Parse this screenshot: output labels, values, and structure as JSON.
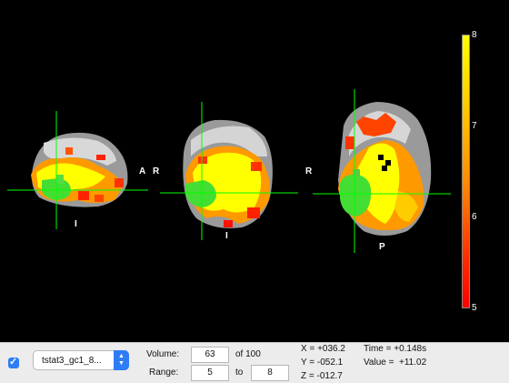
{
  "orientation": {
    "sagittal_anterior": "A",
    "sagittal_inferior": "I",
    "coronal_right": "R",
    "coronal_inferior": "I",
    "axial_right": "R",
    "axial_posterior": "P"
  },
  "colorbar": {
    "max_label": "8",
    "tick_7": "7",
    "tick_6": "6",
    "min_label": "5",
    "top_color": "#ffff00",
    "bottom_color": "#ff0000"
  },
  "crosshair_color": "#00ff00",
  "controls": {
    "overlay_checked": true,
    "file_name": "tstat3_gc1_8...",
    "volume_label": "Volume:",
    "volume_value": "63",
    "volume_of": "of 100",
    "range_label": "Range:",
    "range_min": "5",
    "range_to": "to",
    "range_max": "8"
  },
  "coords": {
    "x": "X = +036.2",
    "y": "Y = -052.1",
    "z": "Z = -012.7",
    "time": "Time = +0.148s",
    "value": "Value =  +11.02"
  }
}
